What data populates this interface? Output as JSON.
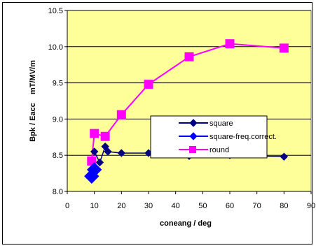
{
  "chart_data": {
    "type": "line",
    "title": "",
    "xlabel": "coneang / deg",
    "ylabel": "Bpk / Eacc    mT/MV/m",
    "xlim": [
      0,
      90
    ],
    "ylim": [
      8.0,
      10.5
    ],
    "x_ticks": [
      "0",
      "10",
      "20",
      "30",
      "40",
      "50",
      "60",
      "70",
      "80",
      "90"
    ],
    "y_ticks": [
      "8.0",
      "8.5",
      "9.0",
      "9.5",
      "10.0",
      "10.5"
    ],
    "grid": "horizontal",
    "plot_background": "#ffff99",
    "legend_placement": "right-middle",
    "series": [
      {
        "name": "square",
        "color": "#000080",
        "marker": "diamond",
        "points": [
          [
            10,
            8.55
          ],
          [
            12,
            8.4
          ],
          [
            14,
            8.62
          ],
          [
            15,
            8.55
          ],
          [
            20,
            8.53
          ],
          [
            30,
            8.53
          ],
          [
            45,
            8.49
          ],
          [
            60,
            8.5
          ],
          [
            80,
            8.48
          ]
        ]
      },
      {
        "name": "square-freq.correct.",
        "color": "#0000ff",
        "marker": "diamond-large",
        "points": [
          [
            9,
            8.21
          ],
          [
            10,
            8.3
          ]
        ]
      },
      {
        "name": "round",
        "color": "#ff00ff",
        "marker": "square",
        "points": [
          [
            9,
            8.42
          ],
          [
            10,
            8.8
          ],
          [
            14,
            8.76
          ],
          [
            20,
            9.06
          ],
          [
            30,
            9.48
          ],
          [
            45,
            9.86
          ],
          [
            60,
            10.04
          ],
          [
            80,
            9.98
          ]
        ]
      }
    ]
  }
}
